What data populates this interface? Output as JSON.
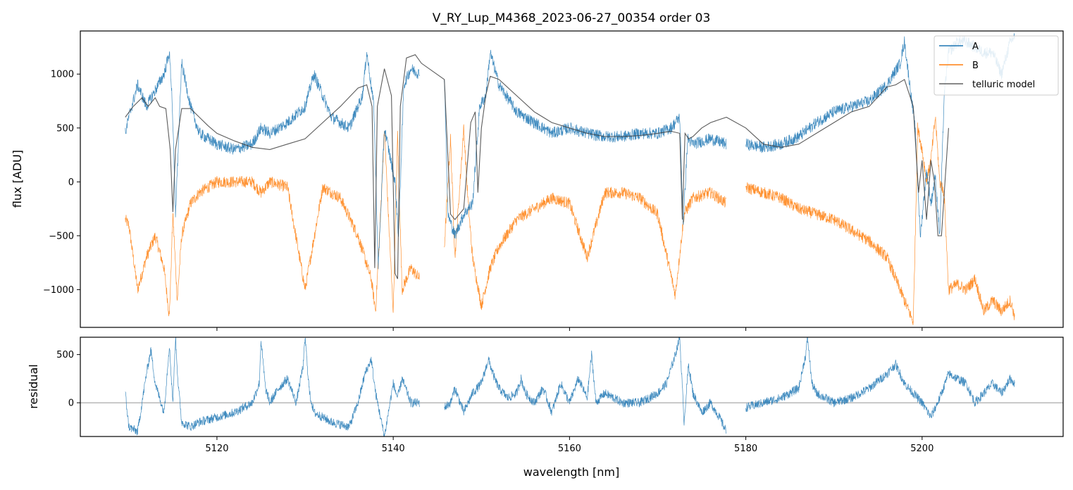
{
  "chart_data": [
    {
      "type": "line",
      "title": "V_RY_Lup_M4368_2023-06-27_00354  order 03",
      "xlabel": "",
      "ylabel": "flux [ADU]",
      "xlim": [
        5104.5,
        5216
      ],
      "ylim": [
        -1350,
        1400
      ],
      "yticks": [
        1000,
        500,
        0,
        -500,
        -1000
      ],
      "ytick_labels": [
        "1000",
        "500",
        "0",
        "−500",
        "−1000"
      ],
      "xticks": [
        5120,
        5140,
        5160,
        5180,
        5200
      ],
      "legend": {
        "placement": "top-right",
        "entries": [
          "A",
          "B",
          "telluric model"
        ]
      },
      "colors": {
        "A": "#1f77b4",
        "B": "#ff7f0e",
        "telluric model": "#404040"
      },
      "series": [
        {
          "name": "A",
          "x": [
            5109.6,
            5110.0,
            5111.0,
            5112.0,
            5113.0,
            5114.0,
            5114.6,
            5114.9,
            5115.3,
            5116.0,
            5117.0,
            5118.0,
            5120.0,
            5122.0,
            5124.0,
            5125.0,
            5126.0,
            5128.0,
            5130.0,
            5131.0,
            5133.0,
            5135.0,
            5136.5,
            5137.0,
            5137.8,
            5138.3,
            5139.0,
            5140.2,
            5140.6,
            5141.2,
            5142.0,
            5143.0,
            5145.8,
            5146.2,
            5147.0,
            5148.0,
            5149.0,
            5149.8,
            5150.5,
            5151.0,
            5152.0,
            5154.0,
            5156.0,
            5158.0,
            5160.0,
            5162.0,
            5164.0,
            5166.0,
            5168.0,
            5170.0,
            5171.5,
            5172.5,
            5172.9,
            5173.4,
            5174.0,
            5176.0,
            5177.8,
            5180.0,
            5182.0,
            5184.0,
            5186.0,
            5188.0,
            5190.0,
            5192.0,
            5194.0,
            5196.0,
            5197.5,
            5198.0,
            5198.6,
            5199.2,
            5199.8,
            5200.5,
            5201.0,
            5201.5,
            5202.0,
            5202.5,
            5203.0,
            5204.0,
            5205.0,
            5206.0,
            5207.0,
            5208.0,
            5209.0,
            5210.0,
            5210.5
          ],
          "y": [
            450,
            600,
            900,
            700,
            850,
            1000,
            1200,
            800,
            -300,
            1100,
            700,
            450,
            350,
            300,
            350,
            500,
            450,
            550,
            700,
            1000,
            600,
            500,
            800,
            1200,
            700,
            -800,
            500,
            0,
            -500,
            900,
            1050,
            1000,
            1000,
            -300,
            -500,
            -300,
            -200,
            700,
            800,
            1200,
            900,
            650,
            550,
            450,
            500,
            450,
            420,
            420,
            450,
            450,
            500,
            600,
            -400,
            400,
            350,
            400,
            350,
            350,
            320,
            350,
            420,
            550,
            650,
            700,
            750,
            900,
            1100,
            1300,
            900,
            500,
            -500,
            100,
            -200,
            50,
            -500,
            800,
            1200,
            1300,
            1300,
            1250,
            1200,
            1200,
            1000,
            1300,
            1350
          ]
        },
        {
          "name": "B",
          "x": [
            5109.6,
            5110.0,
            5111.0,
            5112.0,
            5113.0,
            5114.0,
            5114.6,
            5115.0,
            5115.5,
            5116.0,
            5117.0,
            5118.0,
            5120.0,
            5122.0,
            5124.0,
            5125.0,
            5126.0,
            5128.0,
            5130.0,
            5132.0,
            5134.0,
            5136.0,
            5137.5,
            5138.0,
            5138.5,
            5139.0,
            5139.5,
            5140.0,
            5140.5,
            5141.0,
            5142.0,
            5143.0,
            5145.8,
            5146.5,
            5147.0,
            5148.0,
            5148.5,
            5149.0,
            5150.0,
            5151.0,
            5152.0,
            5154.0,
            5156.0,
            5158.0,
            5160.0,
            5162.0,
            5164.0,
            5166.0,
            5168.0,
            5170.0,
            5172.0,
            5173.0,
            5174.0,
            5176.0,
            5177.8,
            5180.0,
            5182.0,
            5184.0,
            5186.0,
            5188.0,
            5190.0,
            5192.0,
            5194.0,
            5196.0,
            5197.0,
            5198.0,
            5199.0,
            5199.5,
            5200.0,
            5200.5,
            5201.0,
            5201.5,
            5202.0,
            5202.5,
            5203.0,
            5204.0,
            5205.0,
            5206.0,
            5207.0,
            5208.0,
            5209.0,
            5210.0,
            5210.5
          ],
          "y": [
            -350,
            -400,
            -1000,
            -700,
            -500,
            -800,
            -1250,
            -300,
            -1100,
            -500,
            -200,
            -100,
            0,
            0,
            0,
            -100,
            0,
            -50,
            -1000,
            -50,
            -150,
            -500,
            -900,
            -1200,
            -400,
            500,
            -400,
            -1200,
            450,
            -1000,
            -800,
            -900,
            -600,
            400,
            -700,
            500,
            -200,
            -700,
            -1150,
            -800,
            -600,
            -350,
            -250,
            -150,
            -200,
            -700,
            -100,
            -100,
            -150,
            -300,
            -1050,
            -300,
            -150,
            -100,
            -200,
            -50,
            -100,
            -150,
            -250,
            -300,
            -350,
            -450,
            -550,
            -700,
            -900,
            -1100,
            -1300,
            500,
            300,
            0,
            200,
            600,
            0,
            -100,
            -1000,
            -950,
            -1000,
            -900,
            -1200,
            -1100,
            -1200,
            -1100,
            -1250
          ]
        },
        {
          "name": "telluric model",
          "x": [
            5109.6,
            5110.5,
            5111.5,
            5112.2,
            5113.0,
            5113.5,
            5114.2,
            5114.7,
            5115.0,
            5115.3,
            5116.0,
            5117.0,
            5118.0,
            5119.0,
            5120.0,
            5122.0,
            5124.0,
            5126.0,
            5128.0,
            5130.0,
            5132.0,
            5134.0,
            5136.0,
            5137.0,
            5137.6,
            5137.9,
            5138.2,
            5139.0,
            5139.8,
            5140.2,
            5140.5,
            5140.8,
            5141.5,
            5142.5,
            5143.2,
            5145.8,
            5146.5,
            5147.0,
            5148.0,
            5148.8,
            5149.3,
            5149.6,
            5150.0,
            5150.5,
            5151.0,
            5152.0,
            5154.0,
            5156.0,
            5158.0,
            5160.0,
            5162.0,
            5164.0,
            5166.0,
            5168.0,
            5170.0,
            5171.5,
            5172.5,
            5172.8,
            5173.1,
            5173.5,
            5174.0,
            5175.0,
            5176.0,
            5177.8,
            5180.0,
            5182.0,
            5184.0,
            5186.0,
            5188.0,
            5190.0,
            5192.0,
            5194.0,
            5196.0,
            5197.0,
            5198.0,
            5199.0,
            5199.6,
            5200.0,
            5200.5,
            5201.0,
            5201.4,
            5201.8,
            5202.2,
            5202.6,
            5203.0
          ],
          "y": [
            600,
            700,
            780,
            700,
            780,
            700,
            680,
            300,
            -280,
            300,
            680,
            680,
            600,
            520,
            450,
            380,
            320,
            300,
            350,
            400,
            550,
            700,
            870,
            900,
            700,
            -800,
            700,
            1050,
            800,
            -850,
            -900,
            700,
            1150,
            1180,
            1100,
            950,
            -300,
            -350,
            -250,
            550,
            650,
            -100,
            500,
            800,
            980,
            950,
            800,
            650,
            550,
            500,
            450,
            420,
            420,
            430,
            450,
            470,
            450,
            -350,
            450,
            400,
            420,
            500,
            550,
            600,
            500,
            350,
            320,
            350,
            450,
            550,
            650,
            700,
            880,
            900,
            950,
            700,
            -100,
            200,
            -350,
            200,
            0,
            -500,
            -500,
            0,
            500
          ]
        }
      ]
    },
    {
      "type": "line",
      "title": "",
      "xlabel": "wavelength [nm]",
      "ylabel": "residual",
      "xlim": [
        5104.5,
        5216
      ],
      "ylim": [
        -350,
        680
      ],
      "yticks": [
        500,
        0
      ],
      "ytick_labels": [
        "500",
        "0"
      ],
      "xticks": [
        5120,
        5140,
        5160,
        5180,
        5200
      ],
      "xtick_labels": [
        "5120",
        "5140",
        "5160",
        "5180",
        "5200"
      ],
      "reference_line": 0,
      "series": [
        {
          "name": "residual",
          "x": [
            5109.6,
            5110.0,
            5111.0,
            5112.0,
            5112.5,
            5113.0,
            5114.0,
            5114.6,
            5115.0,
            5115.3,
            5115.6,
            5116.0,
            5117.0,
            5118.0,
            5120.0,
            5122.0,
            5124.0,
            5124.8,
            5125.0,
            5125.5,
            5126.0,
            5127.0,
            5128.0,
            5129.0,
            5129.8,
            5130.0,
            5130.5,
            5131.0,
            5133.0,
            5135.0,
            5136.0,
            5136.8,
            5137.5,
            5138.0,
            5139.0,
            5140.0,
            5140.5,
            5141.0,
            5142.0,
            5143.0,
            5145.8,
            5146.5,
            5147.0,
            5148.0,
            5149.0,
            5150.0,
            5150.8,
            5151.5,
            5152.0,
            5153.0,
            5154.0,
            5154.5,
            5155.0,
            5156.0,
            5157.0,
            5158.0,
            5159.0,
            5160.0,
            5161.0,
            5162.0,
            5162.5,
            5163.0,
            5164.0,
            5166.0,
            5168.0,
            5170.0,
            5171.0,
            5172.0,
            5172.5,
            5173.0,
            5173.5,
            5174.0,
            5175.0,
            5176.0,
            5177.0,
            5177.8,
            5180.0,
            5182.0,
            5184.0,
            5186.0,
            5186.8,
            5187.0,
            5187.5,
            5188.0,
            5190.0,
            5192.0,
            5194.0,
            5196.0,
            5197.0,
            5198.0,
            5199.0,
            5200.0,
            5201.0,
            5202.0,
            5203.0,
            5204.0,
            5205.0,
            5206.0,
            5207.0,
            5208.0,
            5209.0,
            5210.0,
            5210.5
          ],
          "y": [
            100,
            -250,
            -300,
            300,
            550,
            200,
            -100,
            600,
            0,
            680,
            200,
            -200,
            -250,
            -200,
            -150,
            -100,
            0,
            200,
            650,
            150,
            0,
            150,
            250,
            0,
            400,
            680,
            100,
            -100,
            -200,
            -250,
            0,
            300,
            450,
            100,
            -350,
            200,
            50,
            250,
            0,
            0,
            -50,
            0,
            150,
            -100,
            100,
            200,
            450,
            250,
            150,
            50,
            100,
            250,
            100,
            0,
            150,
            -100,
            200,
            0,
            250,
            50,
            500,
            0,
            100,
            0,
            0,
            100,
            200,
            500,
            680,
            -200,
            400,
            100,
            -100,
            0,
            -150,
            -300,
            -50,
            0,
            50,
            150,
            500,
            680,
            200,
            100,
            0,
            50,
            150,
            300,
            400,
            200,
            100,
            0,
            -150,
            50,
            300,
            250,
            200,
            0,
            100,
            200,
            100,
            250,
            200
          ]
        }
      ]
    }
  ]
}
